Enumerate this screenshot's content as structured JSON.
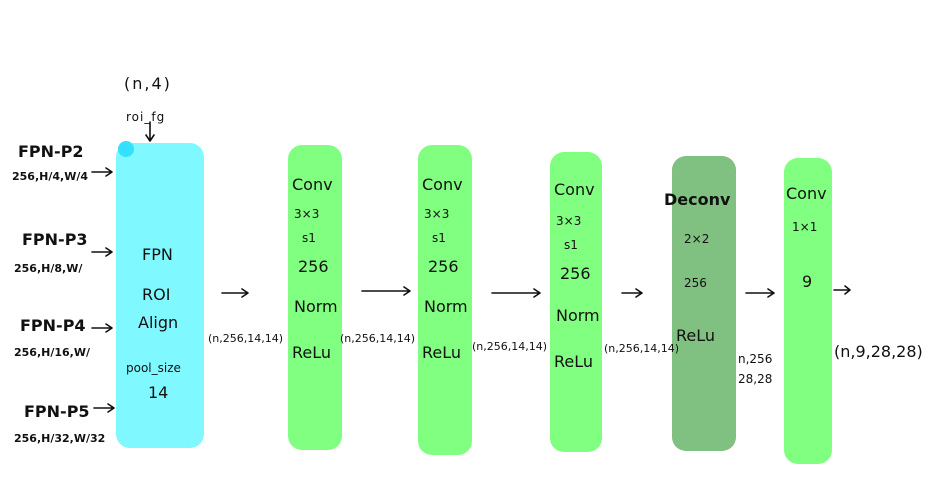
{
  "roi_input": {
    "shape": "(n,4)",
    "name": "roi_fg"
  },
  "fpn_inputs": [
    {
      "name": "FPN-P2",
      "shape": "256,H/4,W/4"
    },
    {
      "name": "FPN-P3",
      "shape": "256,H/8,W/"
    },
    {
      "name": "FPN-P4",
      "shape": "256,H/16,W/"
    },
    {
      "name": "FPN-P5",
      "shape": "256,H/32,W/32"
    }
  ],
  "roi_block": {
    "lines": [
      "FPN",
      "ROI",
      "Align"
    ],
    "pool_label": "pool_size",
    "pool_value": "14",
    "color": "#80f8ff"
  },
  "conv_blocks": [
    {
      "lines": [
        "Conv",
        "3×3",
        "s1",
        "256",
        "Norm",
        "ReLu"
      ],
      "color": "#80ff80"
    },
    {
      "lines": [
        "Conv",
        "3×3",
        "s1",
        "256",
        "Norm",
        "ReLu"
      ],
      "color": "#80ff80"
    },
    {
      "lines": [
        "Conv",
        "3×3",
        "s1",
        "256",
        "Norm",
        "ReLu"
      ],
      "color": "#80ff80"
    }
  ],
  "deconv_block": {
    "lines": [
      "Deconv",
      "2×2",
      "256",
      "ReLu"
    ],
    "color": "#80c080"
  },
  "final_block": {
    "lines": [
      "Conv",
      "1×1",
      "9"
    ],
    "color": "#80ff80"
  },
  "shapes": {
    "after_roi": "(n,256,14,14)",
    "after_conv1": "(n,256,14,14)",
    "after_conv2": "(n,256,14,14)",
    "after_conv3": "(n,256,14,14)",
    "after_deconv_line1": "n,256",
    "after_deconv_line2": "28,28",
    "output": "(n,9,28,28)"
  }
}
